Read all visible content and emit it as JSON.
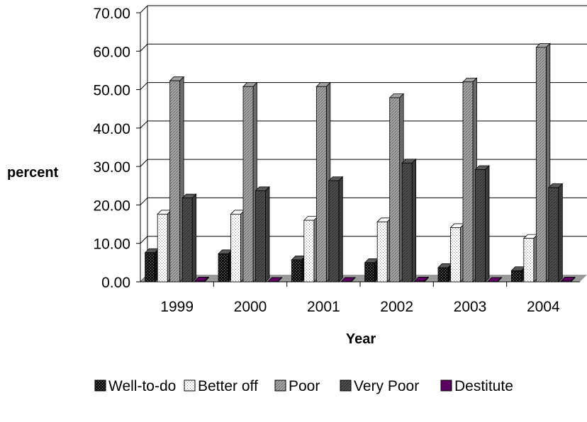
{
  "chart_data": {
    "type": "bar",
    "title": "",
    "xlabel": "Year",
    "ylabel": "percent",
    "ylim": [
      0,
      70
    ],
    "yticks": [
      "0.00",
      "10.00",
      "20.00",
      "30.00",
      "40.00",
      "50.00",
      "60.00",
      "70.00"
    ],
    "categories": [
      "1999",
      "2000",
      "2001",
      "2002",
      "2003",
      "2004"
    ],
    "series": [
      {
        "name": "Well-to-do",
        "color": "#1a1a1a",
        "pattern": "dark-dots",
        "values": [
          7.6,
          7.3,
          5.7,
          5.0,
          3.7,
          2.9
        ]
      },
      {
        "name": "Better off",
        "color": "#f2f2f2",
        "pattern": "light-dots",
        "values": [
          17.6,
          17.6,
          16.0,
          15.6,
          14.1,
          11.3
        ]
      },
      {
        "name": "Poor",
        "color": "#9a9a9a",
        "pattern": "hatch",
        "values": [
          52.3,
          50.8,
          50.8,
          47.9,
          52.0,
          61.0
        ]
      },
      {
        "name": "Very Poor",
        "color": "#555555",
        "pattern": "dark-hatch",
        "values": [
          21.8,
          23.7,
          26.3,
          30.9,
          29.2,
          24.5
        ]
      },
      {
        "name": "Destitute",
        "color": "#5b0060",
        "pattern": "solid",
        "values": [
          0.2,
          0.1,
          0.1,
          0.2,
          0.1,
          0.2
        ]
      }
    ],
    "grid": true,
    "legend_position": "bottom"
  }
}
